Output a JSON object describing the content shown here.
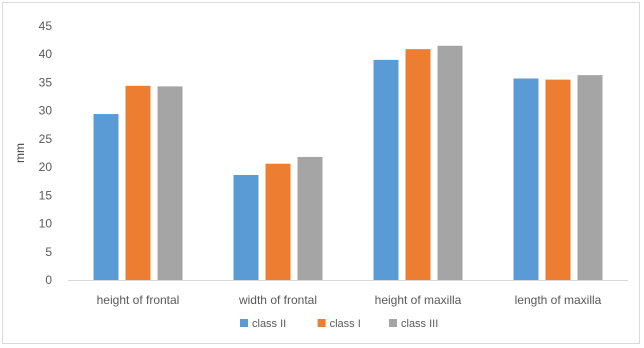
{
  "chart_data": {
    "type": "bar",
    "title": "",
    "xlabel": "",
    "ylabel": "mm",
    "ylim": [
      0,
      45
    ],
    "yticks": [
      0,
      5,
      10,
      15,
      20,
      25,
      30,
      35,
      40,
      45
    ],
    "grid": false,
    "legend_position": "bottom",
    "categories": [
      "height of frontal",
      "width of frontal",
      "height of maxilla",
      "length of maxilla"
    ],
    "series": [
      {
        "name": "class II",
        "color": "#5b9bd5",
        "values": [
          29.4,
          18.6,
          39.0,
          35.7
        ]
      },
      {
        "name": "class I",
        "color": "#ed7d31",
        "values": [
          34.4,
          20.6,
          40.9,
          35.5
        ]
      },
      {
        "name": "class III",
        "color": "#a5a5a5",
        "values": [
          34.3,
          21.8,
          41.5,
          36.3
        ]
      }
    ]
  }
}
